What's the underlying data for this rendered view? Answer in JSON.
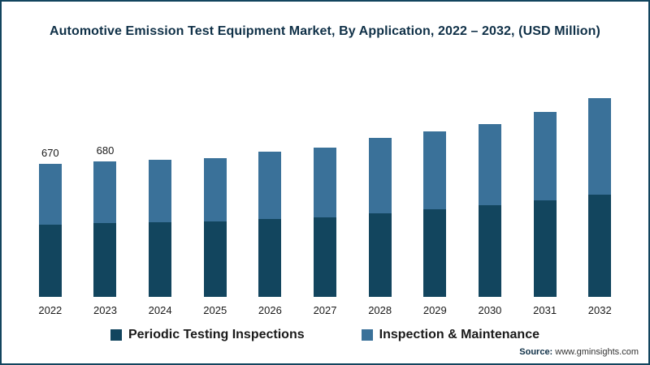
{
  "chart_data": {
    "type": "bar",
    "stacked": true,
    "title": "Automotive Emission Test Equipment Market, By Application, 2022 – 2032, (USD Million)",
    "categories": [
      "2022",
      "2023",
      "2024",
      "2025",
      "2026",
      "2027",
      "2028",
      "2029",
      "2030",
      "2031",
      "2032"
    ],
    "series": [
      {
        "name": "Periodic Testing Inspections",
        "color": "#12455e",
        "values": [
          365,
          370,
          375,
          380,
          390,
          400,
          420,
          440,
          460,
          485,
          515
        ]
      },
      {
        "name": "Inspection & Maintenance",
        "color": "#3a7199",
        "values": [
          305,
          310,
          315,
          320,
          340,
          350,
          380,
          390,
          410,
          445,
          485
        ]
      }
    ],
    "totals": [
      670,
      680,
      690,
      700,
      730,
      750,
      800,
      830,
      870,
      930,
      1000
    ],
    "data_labels": [
      "670",
      "680",
      "",
      "",
      "",
      "",
      "",
      "",
      "",
      "",
      ""
    ],
    "ylim": [
      0,
      1050
    ],
    "xlabel": "",
    "ylabel": "",
    "grid": false,
    "legend_position": "bottom"
  },
  "source": {
    "label": "Source:",
    "site": " www.gminsights.com"
  }
}
